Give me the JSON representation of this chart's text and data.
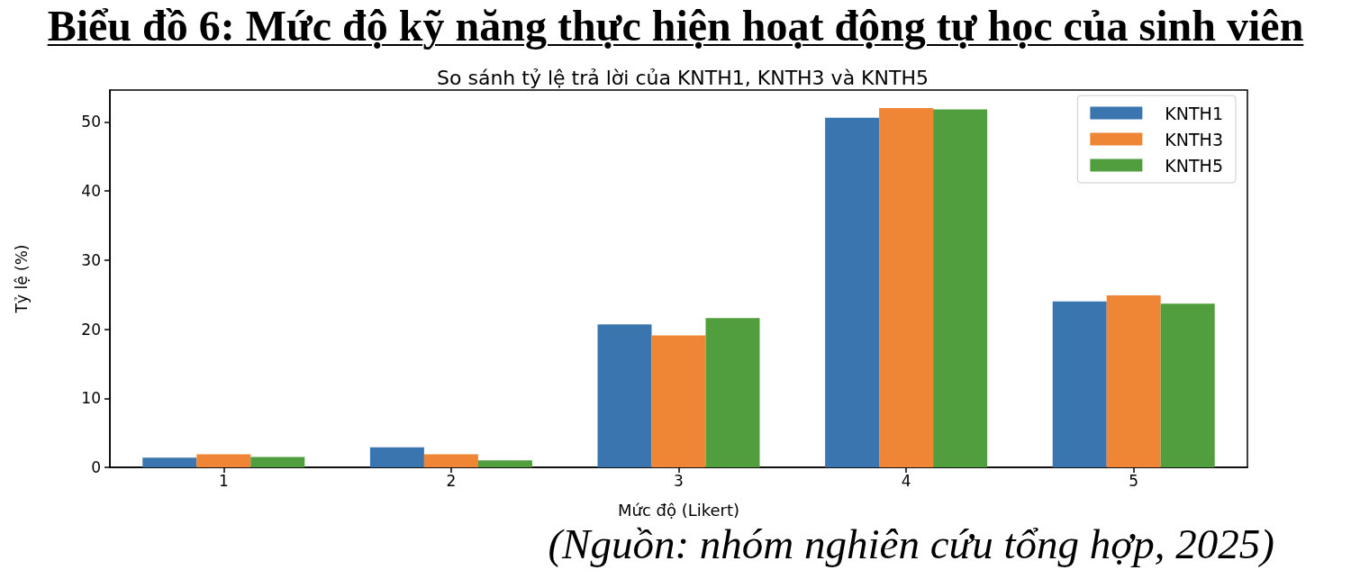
{
  "chart_data": {
    "type": "bar",
    "title": "Biểu đồ 6: Mức độ kỹ năng thực hiện hoạt động tự học của sinh viên",
    "subtitle": "So sánh tỷ lệ trả lời của KNTH1, KNTH3 và KNTH5",
    "xlabel": "Mức độ (Likert)",
    "ylabel": "Tỷ lệ (%)",
    "annotations": [
      "(Nguồn: nhóm nghiên cứu tổng hợp, 2025)"
    ],
    "categories": [
      "1",
      "2",
      "3",
      "4",
      "5"
    ],
    "series": [
      {
        "name": "KNTH1",
        "color": "#3a75af",
        "values": [
          1.4,
          2.9,
          20.7,
          50.6,
          24.0
        ]
      },
      {
        "name": "KNTH3",
        "color": "#ef8636",
        "values": [
          1.9,
          1.9,
          19.1,
          52.0,
          24.9
        ]
      },
      {
        "name": "KNTH5",
        "color": "#519e3e",
        "values": [
          1.5,
          1.0,
          21.6,
          51.8,
          23.7
        ]
      }
    ],
    "ylim": [
      0,
      54.6
    ],
    "yticks": [
      0,
      10,
      20,
      30,
      40,
      50
    ],
    "legend": "top right"
  }
}
